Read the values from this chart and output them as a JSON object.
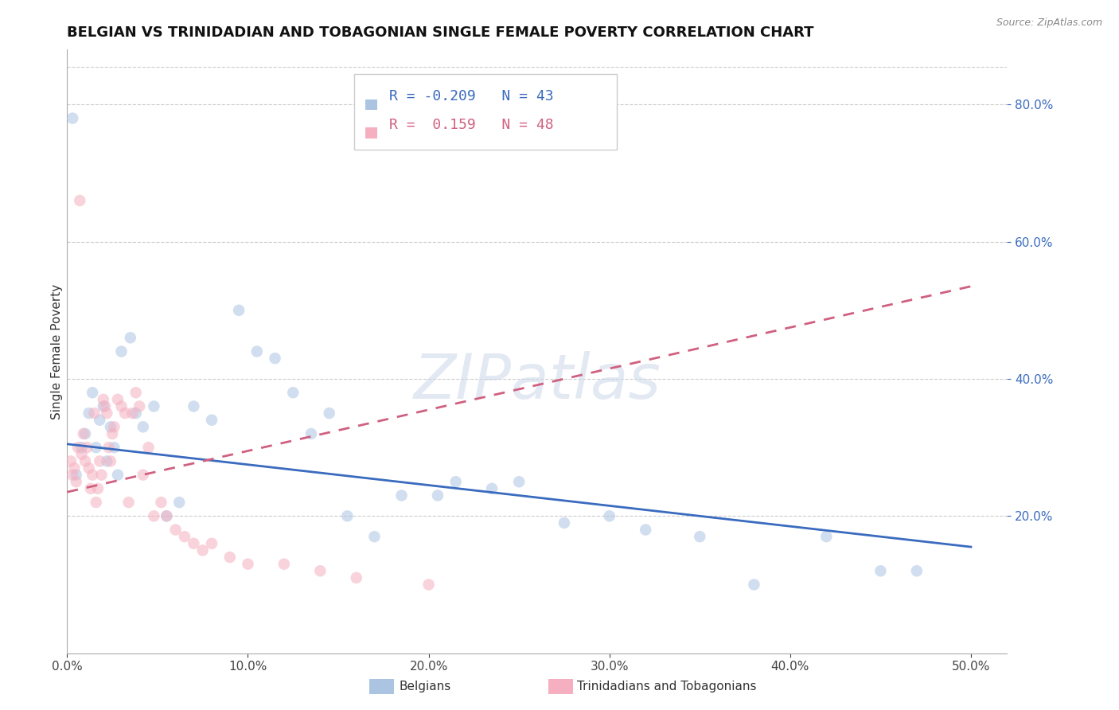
{
  "title": "BELGIAN VS TRINIDADIAN AND TOBAGONIAN SINGLE FEMALE POVERTY CORRELATION CHART",
  "source": "Source: ZipAtlas.com",
  "ylabel": "Single Female Poverty",
  "xlim": [
    0.0,
    0.52
  ],
  "ylim": [
    0.0,
    0.88
  ],
  "xticks": [
    0.0,
    0.1,
    0.2,
    0.3,
    0.4,
    0.5
  ],
  "yticks_right": [
    0.2,
    0.4,
    0.6,
    0.8
  ],
  "grid_color": "#cccccc",
  "background_color": "#ffffff",
  "belgian_color": "#aac4e2",
  "trinidadian_color": "#f5afc0",
  "belgian_line_color": "#3a6bbf",
  "trinidadian_line_color": "#d06080",
  "watermark": "ZIPatlas",
  "marker_size": 110,
  "marker_alpha": 0.55,
  "line_width": 2.0,
  "title_fontsize": 13,
  "axis_label_fontsize": 11,
  "tick_fontsize": 11,
  "legend_fontsize": 13,
  "R_belgian": -0.209,
  "N_belgian": 43,
  "R_trinidadian": 0.159,
  "N_trinidadian": 48,
  "bel_line_x0": 0.0,
  "bel_line_x1": 0.5,
  "bel_line_y0": 0.305,
  "bel_line_y1": 0.155,
  "tri_line_x0": 0.0,
  "tri_line_x1": 0.5,
  "tri_line_y0": 0.235,
  "tri_line_y1": 0.535
}
